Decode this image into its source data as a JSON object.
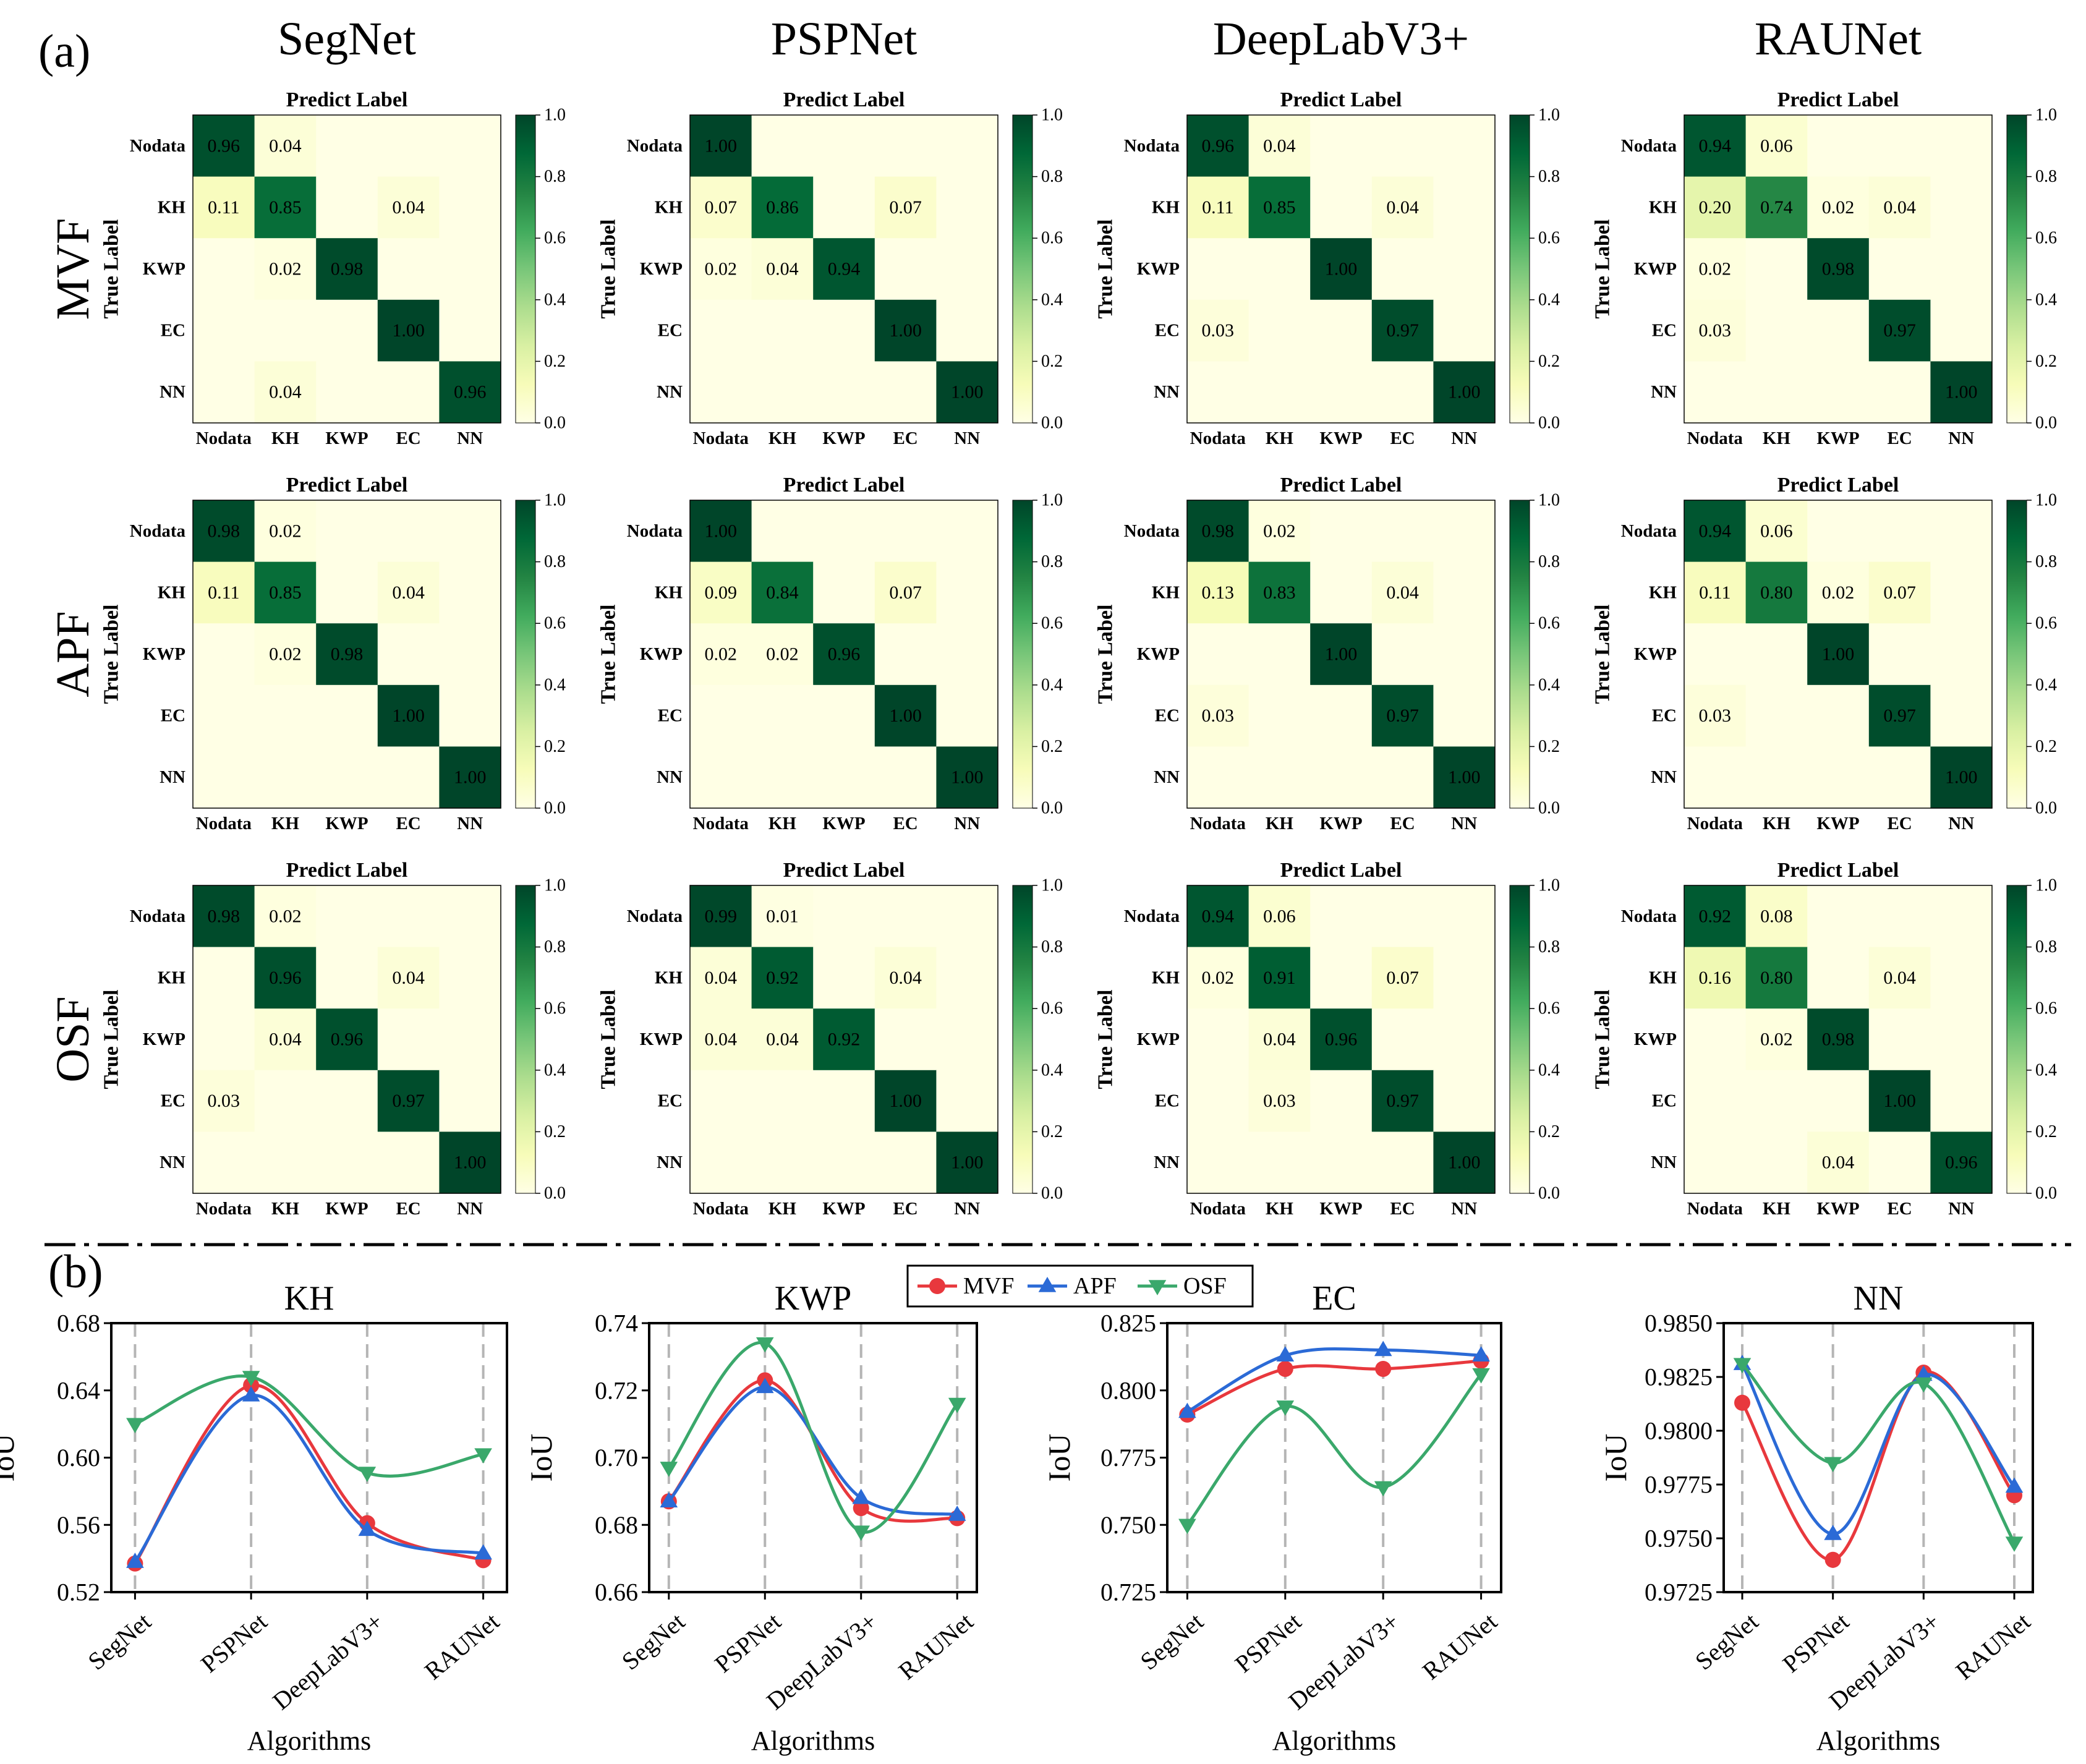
{
  "panel_a_label": "(a)",
  "panel_b_label": "(b)",
  "chart_data": [
    {
      "type": "heatmap",
      "panel": "(a)",
      "columns": [
        "SegNet",
        "PSPNet",
        "DeepLabV3+",
        "RAUNet"
      ],
      "rows": [
        "MVF",
        "APF",
        "OSF"
      ],
      "classes": [
        "Nodata",
        "KH",
        "KWP",
        "EC",
        "NN"
      ],
      "xlabel": "Predict Label",
      "ylabel": "True Label",
      "colorbar_ticks": [
        "1.0",
        "0.8",
        "0.6",
        "0.4",
        "0.2",
        "0.0"
      ],
      "colorbar_range": [
        0,
        1
      ],
      "colormap": [
        "#ffffe5",
        "#f7fcb9",
        "#d9f0a3",
        "#addd8e",
        "#78c679",
        "#41ab5d",
        "#238443",
        "#006837",
        "#004529"
      ],
      "matrices": [
        [
          [
            [
              0.96,
              0.04,
              0,
              0,
              0
            ],
            [
              0.11,
              0.85,
              0,
              0.04,
              0
            ],
            [
              0,
              0.02,
              0.98,
              0,
              0
            ],
            [
              0,
              0,
              0,
              1.0,
              0
            ],
            [
              0,
              0.04,
              0,
              0,
              0.96
            ]
          ],
          [
            [
              1.0,
              0,
              0,
              0,
              0
            ],
            [
              0.07,
              0.86,
              0,
              0.07,
              0
            ],
            [
              0.02,
              0.04,
              0.94,
              0,
              0
            ],
            [
              0,
              0,
              0,
              1.0,
              0
            ],
            [
              0,
              0,
              0,
              0,
              1.0
            ]
          ],
          [
            [
              0.96,
              0.04,
              0,
              0,
              0
            ],
            [
              0.11,
              0.85,
              0,
              0.04,
              0
            ],
            [
              0,
              0,
              1.0,
              0,
              0
            ],
            [
              0.03,
              0,
              0,
              0.97,
              0
            ],
            [
              0,
              0,
              0,
              0,
              1.0
            ]
          ],
          [
            [
              0.94,
              0.06,
              0,
              0,
              0
            ],
            [
              0.2,
              0.74,
              0.02,
              0.04,
              0
            ],
            [
              0.02,
              0,
              0.98,
              0,
              0
            ],
            [
              0.03,
              0,
              0,
              0.97,
              0
            ],
            [
              0,
              0,
              0,
              0,
              1.0
            ]
          ]
        ],
        [
          [
            [
              0.98,
              0.02,
              0,
              0,
              0
            ],
            [
              0.11,
              0.85,
              0,
              0.04,
              0
            ],
            [
              0,
              0.02,
              0.98,
              0,
              0
            ],
            [
              0,
              0,
              0,
              1.0,
              0
            ],
            [
              0,
              0,
              0,
              0,
              1.0
            ]
          ],
          [
            [
              1.0,
              0,
              0,
              0,
              0
            ],
            [
              0.09,
              0.84,
              0,
              0.07,
              0
            ],
            [
              0.02,
              0.02,
              0.96,
              0,
              0
            ],
            [
              0,
              0,
              0,
              1.0,
              0
            ],
            [
              0,
              0,
              0,
              0,
              1.0
            ]
          ],
          [
            [
              0.98,
              0.02,
              0,
              0,
              0
            ],
            [
              0.13,
              0.83,
              0,
              0.04,
              0
            ],
            [
              0,
              0,
              1.0,
              0,
              0
            ],
            [
              0.03,
              0,
              0,
              0.97,
              0
            ],
            [
              0,
              0,
              0,
              0,
              1.0
            ]
          ],
          [
            [
              0.94,
              0.06,
              0,
              0,
              0
            ],
            [
              0.11,
              0.8,
              0.02,
              0.07,
              0
            ],
            [
              0,
              0,
              1.0,
              0,
              0
            ],
            [
              0.03,
              0,
              0,
              0.97,
              0
            ],
            [
              0,
              0,
              0,
              0,
              1.0
            ]
          ]
        ],
        [
          [
            [
              0.98,
              0.02,
              0,
              0,
              0
            ],
            [
              0,
              0.96,
              0,
              0.04,
              0
            ],
            [
              0,
              0.04,
              0.96,
              0,
              0
            ],
            [
              0.03,
              0,
              0,
              0.97,
              0
            ],
            [
              0,
              0,
              0,
              0,
              1.0
            ]
          ],
          [
            [
              0.99,
              0.01,
              0,
              0,
              0
            ],
            [
              0.04,
              0.92,
              0,
              0.04,
              0
            ],
            [
              0.04,
              0.04,
              0.92,
              0,
              0
            ],
            [
              0,
              0,
              0,
              1.0,
              0
            ],
            [
              0,
              0,
              0,
              0,
              1.0
            ]
          ],
          [
            [
              0.94,
              0.06,
              0,
              0,
              0
            ],
            [
              0.02,
              0.91,
              0,
              0.07,
              0
            ],
            [
              0,
              0.04,
              0.96,
              0,
              0
            ],
            [
              0,
              0.03,
              0,
              0.97,
              0
            ],
            [
              0,
              0,
              0,
              0,
              1.0
            ]
          ],
          [
            [
              0.92,
              0.08,
              0,
              0,
              0
            ],
            [
              0.16,
              0.8,
              0,
              0.04,
              0
            ],
            [
              0,
              0.02,
              0.98,
              0,
              0
            ],
            [
              0,
              0,
              0,
              1.0,
              0
            ],
            [
              0,
              0,
              0.04,
              0,
              0.96
            ]
          ]
        ]
      ]
    },
    {
      "type": "line",
      "panel": "(b)",
      "categories": [
        "SegNet",
        "PSPNet",
        "DeepLabV3+",
        "RAUNet"
      ],
      "xlabel": "Algorithms",
      "ylabel": "IoU",
      "legend": {
        "placement": "top-center",
        "entries": [
          "MVF",
          "APF",
          "OSF"
        ]
      },
      "series_styles": [
        {
          "name": "MVF",
          "color": "#e8383d",
          "marker": "circle"
        },
        {
          "name": "APF",
          "color": "#2b6ad6",
          "marker": "triangle-up"
        },
        {
          "name": "OSF",
          "color": "#3aa86b",
          "marker": "triangle-down"
        }
      ],
      "grid": "vertical-dashed",
      "subplots": [
        {
          "title": "KH",
          "ylim": [
            0.52,
            0.68
          ],
          "yticks": [
            "0.52",
            "0.56",
            "0.60",
            "0.64",
            "0.68"
          ],
          "series": [
            {
              "name": "MVF",
              "values": [
                0.537,
                0.643,
                0.561,
                0.539
              ]
            },
            {
              "name": "APF",
              "values": [
                0.538,
                0.637,
                0.557,
                0.543
              ]
            },
            {
              "name": "OSF",
              "values": [
                0.62,
                0.648,
                0.591,
                0.602
              ]
            }
          ]
        },
        {
          "title": "KWP",
          "ylim": [
            0.66,
            0.74
          ],
          "yticks": [
            "0.66",
            "0.68",
            "0.70",
            "0.72",
            "0.74"
          ],
          "series": [
            {
              "name": "MVF",
              "values": [
                0.687,
                0.723,
                0.685,
                0.682
              ]
            },
            {
              "name": "APF",
              "values": [
                0.687,
                0.721,
                0.688,
                0.683
              ]
            },
            {
              "name": "OSF",
              "values": [
                0.697,
                0.734,
                0.678,
                0.716
              ]
            }
          ]
        },
        {
          "title": "EC",
          "ylim": [
            0.725,
            0.825
          ],
          "yticks": [
            "0.725",
            "0.750",
            "0.775",
            "0.800",
            "0.825"
          ],
          "series": [
            {
              "name": "MVF",
              "values": [
                0.791,
                0.808,
                0.808,
                0.811
              ]
            },
            {
              "name": "APF",
              "values": [
                0.792,
                0.813,
                0.815,
                0.813
              ]
            },
            {
              "name": "OSF",
              "values": [
                0.75,
                0.794,
                0.764,
                0.806
              ]
            }
          ]
        },
        {
          "title": "NN",
          "ylim": [
            0.9725,
            0.985
          ],
          "yticks": [
            "0.9725",
            "0.9750",
            "0.9775",
            "0.9800",
            "0.9825",
            "0.9850"
          ],
          "series": [
            {
              "name": "MVF",
              "values": [
                0.9813,
                0.974,
                0.9827,
                0.977
              ]
            },
            {
              "name": "APF",
              "values": [
                0.9831,
                0.9752,
                0.9826,
                0.9774
              ]
            },
            {
              "name": "OSF",
              "values": [
                0.9831,
                0.9785,
                0.9822,
                0.9748
              ]
            }
          ]
        }
      ]
    }
  ]
}
